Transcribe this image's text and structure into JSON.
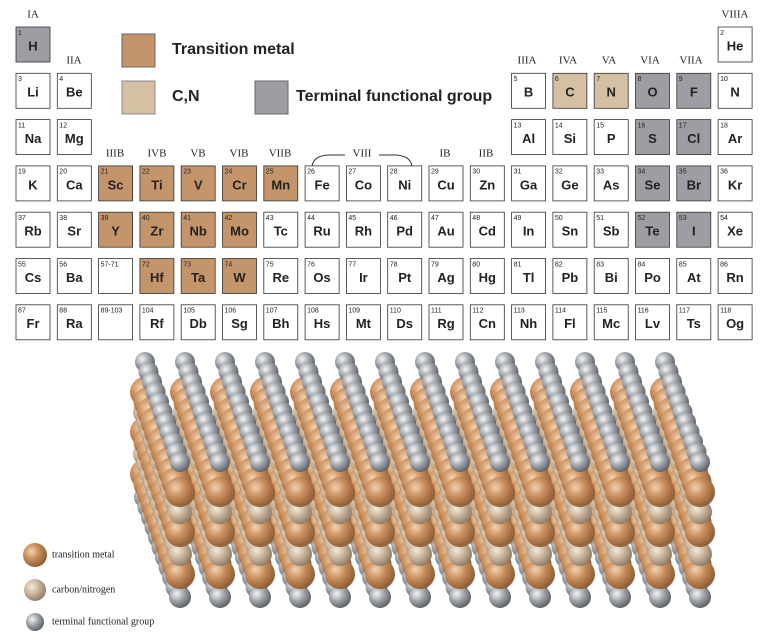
{
  "legend": [
    {
      "label": "Transition metal",
      "color": "#c4956a"
    },
    {
      "label": "C,N",
      "color": "#d6c0a4"
    },
    {
      "label": "Terminal functional group",
      "color": "#9c9ea3"
    }
  ],
  "group_labels": [
    "IA",
    "IIA",
    "IIIA",
    "IVA",
    "VA",
    "VIA",
    "VIIA",
    "VIIIA",
    "IIIB",
    "IVB",
    "VB",
    "VIB",
    "VIIB",
    "VIII",
    "IB",
    "IIB"
  ],
  "elements": [
    {
      "number": 1,
      "symbol": "H",
      "color": "#9c9ea3"
    },
    {
      "number": 2,
      "symbol": "He"
    },
    {
      "number": 3,
      "symbol": "Li"
    },
    {
      "number": 4,
      "symbol": "Be"
    },
    {
      "number": 5,
      "symbol": "B"
    },
    {
      "number": 6,
      "symbol": "C",
      "color": "#d6c0a4"
    },
    {
      "number": 7,
      "symbol": "N",
      "color": "#d6c0a4"
    },
    {
      "number": 8,
      "symbol": "O",
      "color": "#9c9ea3"
    },
    {
      "number": 9,
      "symbol": "F",
      "color": "#9c9ea3"
    },
    {
      "number": 10,
      "symbol": "N"
    },
    {
      "number": 11,
      "symbol": "Na"
    },
    {
      "number": 12,
      "symbol": "Mg"
    },
    {
      "number": 13,
      "symbol": "Al"
    },
    {
      "number": 14,
      "symbol": "Si"
    },
    {
      "number": 15,
      "symbol": "P"
    },
    {
      "number": 16,
      "symbol": "S",
      "color": "#9c9ea3"
    },
    {
      "number": 17,
      "symbol": "Cl",
      "color": "#9c9ea3"
    },
    {
      "number": 18,
      "symbol": "Ar"
    },
    {
      "number": 19,
      "symbol": "K"
    },
    {
      "number": 20,
      "symbol": "Ca"
    },
    {
      "number": 21,
      "symbol": "Sc",
      "color": "#c4956a"
    },
    {
      "number": 22,
      "symbol": "Ti",
      "color": "#c4956a"
    },
    {
      "number": 23,
      "symbol": "V",
      "color": "#c4956a"
    },
    {
      "number": 24,
      "symbol": "Cr",
      "color": "#c4956a"
    },
    {
      "number": 25,
      "symbol": "Mn",
      "color": "#c4956a"
    },
    {
      "number": 26,
      "symbol": "Fe"
    },
    {
      "number": 27,
      "symbol": "Co"
    },
    {
      "number": 28,
      "symbol": "Ni"
    },
    {
      "number": 29,
      "symbol": "Cu"
    },
    {
      "number": 30,
      "symbol": "Zn"
    },
    {
      "number": 31,
      "symbol": "Ga"
    },
    {
      "number": 32,
      "symbol": "Ge"
    },
    {
      "number": 33,
      "symbol": "As"
    },
    {
      "number": 34,
      "symbol": "Se",
      "color": "#9c9ea3"
    },
    {
      "number": 35,
      "symbol": "Br",
      "color": "#9c9ea3"
    },
    {
      "number": 36,
      "symbol": "Kr"
    },
    {
      "number": 37,
      "symbol": "Rb"
    },
    {
      "number": 38,
      "symbol": "Sr"
    },
    {
      "number": 39,
      "symbol": "Y",
      "color": "#c4956a"
    },
    {
      "number": 40,
      "symbol": "Zr",
      "color": "#c4956a"
    },
    {
      "number": 41,
      "symbol": "Nb",
      "color": "#c4956a"
    },
    {
      "number": 42,
      "symbol": "Mo",
      "color": "#c4956a"
    },
    {
      "number": 43,
      "symbol": "Tc"
    },
    {
      "number": 44,
      "symbol": "Ru"
    },
    {
      "number": 45,
      "symbol": "Rh"
    },
    {
      "number": 46,
      "symbol": "Pd"
    },
    {
      "number": 47,
      "symbol": "Au"
    },
    {
      "number": 48,
      "symbol": "Cd"
    },
    {
      "number": 49,
      "symbol": "In"
    },
    {
      "number": 50,
      "symbol": "Sn"
    },
    {
      "number": 51,
      "symbol": "Sb"
    },
    {
      "number": 52,
      "symbol": "Te",
      "color": "#9c9ea3"
    },
    {
      "number": 53,
      "symbol": "I",
      "color": "#9c9ea3"
    },
    {
      "number": 54,
      "symbol": "Xe"
    },
    {
      "number": 55,
      "symbol": "Cs"
    },
    {
      "number": 56,
      "symbol": "Ba"
    },
    {
      "number": "57-71"
    },
    {
      "number": 72,
      "symbol": "Hf",
      "color": "#c4956a"
    },
    {
      "number": 73,
      "symbol": "Ta",
      "color": "#c4956a"
    },
    {
      "number": 74,
      "symbol": "W",
      "color": "#c4956a"
    },
    {
      "number": 75,
      "symbol": "Re"
    },
    {
      "number": 76,
      "symbol": "Os"
    },
    {
      "number": 77,
      "symbol": "Ir"
    },
    {
      "number": 78,
      "symbol": "Pt"
    },
    {
      "number": 79,
      "symbol": "Ag"
    },
    {
      "number": 80,
      "symbol": "Hg"
    },
    {
      "number": 81,
      "symbol": "Tl"
    },
    {
      "number": 82,
      "symbol": "Pb"
    },
    {
      "number": 83,
      "symbol": "Bi"
    },
    {
      "number": 84,
      "symbol": "Po"
    },
    {
      "number": 85,
      "symbol": "At"
    },
    {
      "number": 86,
      "symbol": "Rn"
    },
    {
      "number": 87,
      "symbol": "Fr"
    },
    {
      "number": 88,
      "symbol": "Ra"
    },
    {
      "number": "89-103"
    },
    {
      "number": 104,
      "symbol": "Rf"
    },
    {
      "number": 105,
      "symbol": "Db"
    },
    {
      "number": 106,
      "symbol": "Sg"
    },
    {
      "number": 107,
      "symbol": "Bh"
    },
    {
      "number": 108,
      "symbol": "Hs"
    },
    {
      "number": 109,
      "symbol": "Mt"
    },
    {
      "number": 110,
      "symbol": "Ds"
    },
    {
      "number": 111,
      "symbol": "Rg"
    },
    {
      "number": 112,
      "symbol": "Cn"
    },
    {
      "number": 113,
      "symbol": "Nh"
    },
    {
      "number": 114,
      "symbol": "Fl"
    },
    {
      "number": 115,
      "symbol": "Mc"
    },
    {
      "number": 116,
      "symbol": "Lv"
    },
    {
      "number": 117,
      "symbol": "Ts"
    },
    {
      "number": 118,
      "symbol": "Og"
    }
  ],
  "structure_legend": [
    "transition metal",
    "carbon/nitrogen",
    "terminal functional group"
  ]
}
